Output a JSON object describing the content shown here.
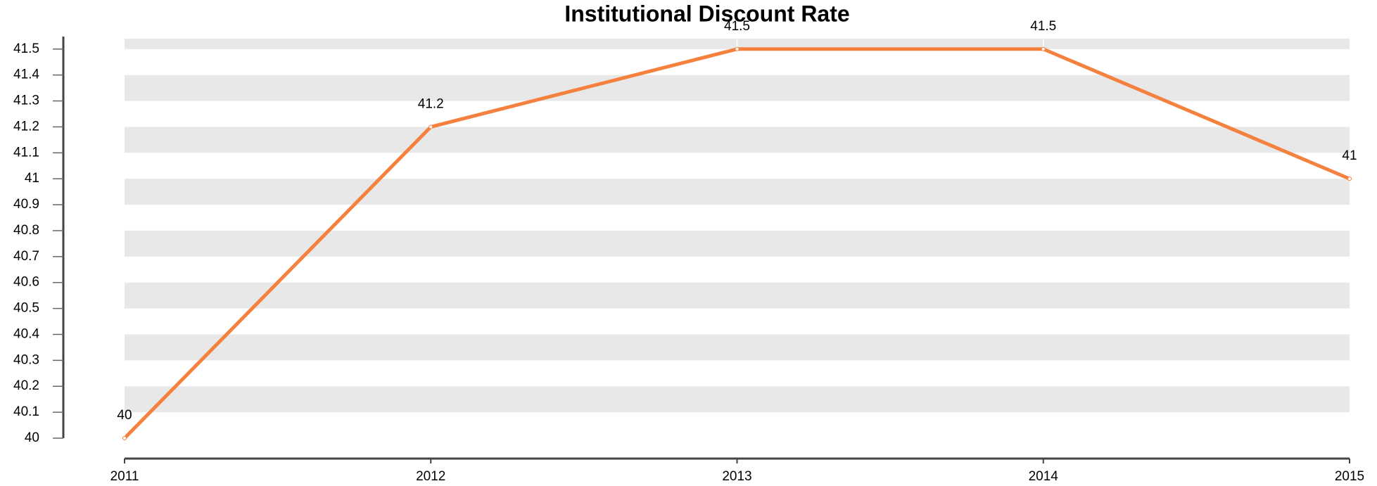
{
  "chart_data": {
    "type": "line",
    "title": "Institutional Discount Rate",
    "categories": [
      "2011",
      "2012",
      "2013",
      "2014",
      "2015"
    ],
    "series": [
      {
        "name": "Institutional Discount Rate",
        "color": "#f5813f",
        "values": [
          40,
          41.2,
          41.5,
          41.5,
          41
        ]
      }
    ],
    "ylim": [
      40,
      41.54
    ],
    "yticks": [
      40,
      40.1,
      40.2,
      40.3,
      40.4,
      40.5,
      40.6,
      40.7,
      40.8,
      40.9,
      41,
      41.1,
      41.2,
      41.3,
      41.4,
      41.5
    ],
    "grid": true
  }
}
